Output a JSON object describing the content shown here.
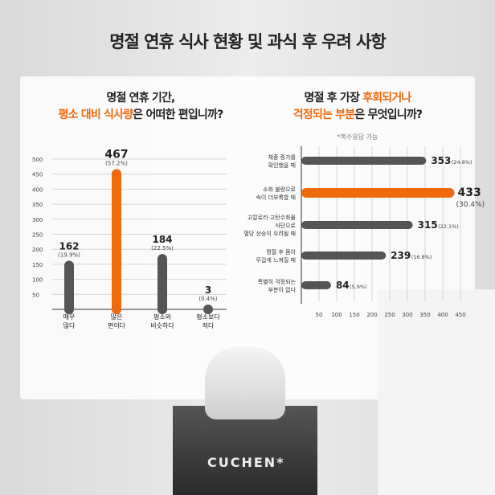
{
  "title": "명절 연휴 식사 현황 및 과식 후 우려 사항",
  "brand": "CUCHEN*",
  "chart_data": [
    {
      "type": "bar",
      "title_line1": "명절 연휴 기간,",
      "title_line2_highlight": "평소 대비 식사량",
      "title_line2_rest": "은 어떠한 편입니까?",
      "categories": [
        "매우 많다",
        "많은 편이다",
        "평소와 비슷하다",
        "평소보다 적다"
      ],
      "values": [
        162,
        467,
        184,
        3
      ],
      "percent_labels": [
        "(19.9%)",
        "(57.2%)",
        "(22.5%)",
        "(0.4%)"
      ],
      "highlight_index": 1,
      "yticks": [
        50,
        100,
        150,
        200,
        250,
        300,
        350,
        400,
        450,
        500
      ],
      "ylim": [
        0,
        500
      ],
      "grid": true
    },
    {
      "type": "bar",
      "orientation": "horizontal",
      "title_line1": "명절 후 가장 ",
      "title_line1_highlight": "후회되거나",
      "title_line2_highlight": "걱정되는 부분",
      "title_line2_rest": "은 무엇입니까?",
      "note": "*복수응답 가능",
      "categories": [
        "체중 증가를 확인했을 때",
        "소화 불량으로 속이 더부룩할 때",
        "고칼로리·고탄수화물 식단으로 혈당 상승이 우려될 때",
        "명절 후 몸이 무겁게 느껴질 때",
        "특별히 걱정되는 부분이 없다"
      ],
      "values": [
        353,
        433,
        315,
        239,
        84
      ],
      "percent_labels": [
        "(24.8%)",
        "(30.4%)",
        "(22.1%)",
        "(16.8%)",
        "(5.9%)"
      ],
      "highlight_index": 1,
      "xticks": [
        50,
        100,
        150,
        200,
        250,
        300,
        350,
        400,
        450
      ],
      "xlim": [
        0,
        450
      ],
      "grid": true
    }
  ],
  "colors": {
    "highlight": "#ef6a0c",
    "bar": "#555555",
    "grid": "#d6d6d6"
  }
}
